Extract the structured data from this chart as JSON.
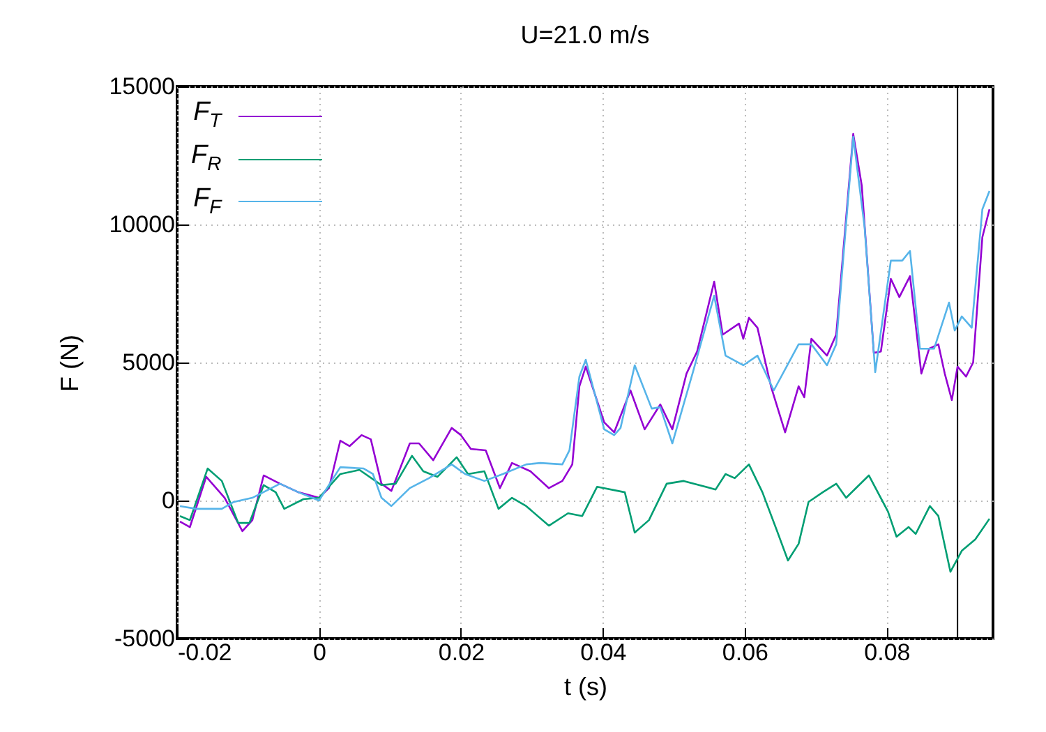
{
  "chart_data": {
    "type": "line",
    "title": "U=21.0 m/s",
    "xlabel": "t (s)",
    "ylabel": "F (N)",
    "xlim": [
      -0.02,
      0.095
    ],
    "xticks": [
      -0.02,
      0,
      0.02,
      0.04,
      0.06,
      0.08
    ],
    "ylim": [
      -5000,
      15000
    ],
    "yticks": [
      -5000,
      0,
      5000,
      10000,
      15000
    ],
    "grid": true,
    "legend": "top left",
    "marker": "none",
    "line_style": "solid",
    "ref_lines": [
      {
        "axis": "x",
        "value": 0.09,
        "color": "#000000"
      }
    ],
    "series": [
      {
        "name": "F$_{T}$",
        "color": "#9400d3",
        "x": [
          -0.0196,
          -0.0182,
          -0.0159,
          -0.0133,
          -0.0108,
          -0.0094,
          -0.0078,
          -0.0055,
          -0.0029,
          0,
          0.0014,
          0.003,
          0.0043,
          0.006,
          0.0073,
          0.0088,
          0.0102,
          0.0128,
          0.0141,
          0.0161,
          0.0187,
          0.02,
          0.0214,
          0.0235,
          0.0255,
          0.0272,
          0.0298,
          0.0324,
          0.0343,
          0.0357,
          0.0367,
          0.0376,
          0.0402,
          0.0416,
          0.0439,
          0.0459,
          0.0481,
          0.0498,
          0.0518,
          0.0533,
          0.0557,
          0.0569,
          0.0592,
          0.0598,
          0.0606,
          0.0618,
          0.0637,
          0.0657,
          0.0676,
          0.0684,
          0.0694,
          0.0716,
          0.0729,
          0.0753,
          0.0765,
          0.0782,
          0.0792,
          0.0806,
          0.0818,
          0.0833,
          0.0849,
          0.086,
          0.0873,
          0.0882,
          0.0892,
          0.09,
          0.0912,
          0.0922,
          0.0935,
          0.0945
        ],
        "values": [
          -760,
          -960,
          860,
          100,
          -1110,
          -710,
          910,
          610,
          300,
          100,
          450,
          2170,
          1970,
          2370,
          2220,
          610,
          350,
          2070,
          2070,
          1460,
          2630,
          2370,
          1870,
          1820,
          450,
          1360,
          1060,
          450,
          710,
          1310,
          4140,
          4850,
          2830,
          2470,
          3990,
          2580,
          3480,
          2580,
          4600,
          5400,
          7930,
          6010,
          6410,
          5860,
          6620,
          6260,
          4140,
          2470,
          4140,
          3740,
          5860,
          5250,
          6010,
          13280,
          11410,
          5350,
          5400,
          8030,
          7370,
          8130,
          4600,
          5500,
          5660,
          4600,
          3640,
          4850,
          4490,
          5000,
          9540,
          10550
        ]
      },
      {
        "name": "F$_{R}$",
        "color": "#009e73",
        "x": [
          -0.0196,
          -0.0182,
          -0.0157,
          -0.0137,
          -0.0114,
          -0.0098,
          -0.0078,
          -0.0061,
          -0.0049,
          -0.0022,
          0,
          0.003,
          0.0057,
          0.0088,
          0.0108,
          0.0131,
          0.0147,
          0.0167,
          0.0194,
          0.021,
          0.0233,
          0.0253,
          0.0272,
          0.0292,
          0.0324,
          0.0351,
          0.0371,
          0.0392,
          0.0431,
          0.0445,
          0.0465,
          0.049,
          0.0514,
          0.0559,
          0.0573,
          0.0586,
          0.0606,
          0.0625,
          0.0645,
          0.0661,
          0.0676,
          0.069,
          0.071,
          0.0729,
          0.0743,
          0.0775,
          0.0802,
          0.0814,
          0.0831,
          0.0841,
          0.0861,
          0.0873,
          0.089,
          0.0906,
          0.0925,
          0.0945
        ],
        "values": [
          -560,
          -710,
          1160,
          710,
          -810,
          -810,
          560,
          300,
          -300,
          50,
          100,
          960,
          1110,
          560,
          610,
          1620,
          1060,
          860,
          1570,
          960,
          1060,
          -300,
          100,
          -200,
          -910,
          -460,
          -560,
          500,
          300,
          -1160,
          -710,
          610,
          710,
          400,
          960,
          810,
          1310,
          300,
          -1060,
          -2170,
          -1570,
          -50,
          300,
          610,
          100,
          910,
          -400,
          -1310,
          -960,
          -1210,
          -200,
          -560,
          -2580,
          -1820,
          -1410,
          -660
        ]
      },
      {
        "name": "F$_{F}$",
        "color": "#56b4e9",
        "x": [
          -0.0196,
          -0.0173,
          -0.0137,
          -0.012,
          -0.0094,
          -0.0055,
          -0.0029,
          0,
          0.003,
          0.0063,
          0.0076,
          0.0088,
          0.0102,
          0.0128,
          0.0155,
          0.0187,
          0.0206,
          0.0233,
          0.0259,
          0.0292,
          0.0312,
          0.0343,
          0.0353,
          0.0367,
          0.0376,
          0.0402,
          0.0416,
          0.0425,
          0.0445,
          0.0469,
          0.0481,
          0.0498,
          0.0527,
          0.0557,
          0.0573,
          0.0598,
          0.0618,
          0.0641,
          0.0676,
          0.0694,
          0.0716,
          0.0729,
          0.0753,
          0.0769,
          0.0784,
          0.0806,
          0.0822,
          0.0833,
          0.0847,
          0.0867,
          0.0888,
          0.0896,
          0.0906,
          0.092,
          0.0935,
          0.0945
        ],
        "values": [
          -200,
          -300,
          -300,
          -50,
          100,
          610,
          300,
          0,
          1210,
          1160,
          960,
          100,
          -200,
          450,
          810,
          1310,
          960,
          710,
          960,
          1310,
          1360,
          1310,
          1820,
          4490,
          5100,
          2580,
          2370,
          2630,
          4900,
          3330,
          3380,
          2070,
          4650,
          7420,
          5250,
          4900,
          5250,
          3990,
          5660,
          5660,
          4900,
          5660,
          13180,
          9900,
          4650,
          8690,
          8690,
          9040,
          5500,
          5500,
          7170,
          6160,
          6670,
          6260,
          10550,
          11210
        ]
      }
    ]
  }
}
